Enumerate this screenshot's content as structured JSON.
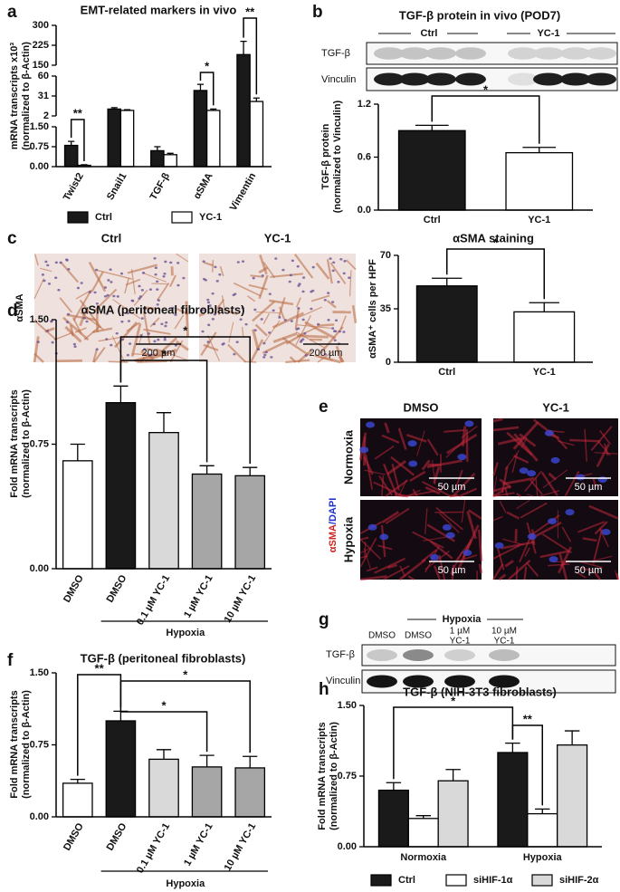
{
  "chart_data": [
    {
      "type": "bar",
      "title": "EMT-related markers in vivo",
      "ylabel": [
        "mRNA transcripts x10³",
        "(normalized to β-Actin)"
      ],
      "categories": [
        "Twist2",
        "Snail1",
        "TGF-β",
        "αSMA",
        "Vimentin"
      ],
      "series": [
        {
          "name": "Ctrl",
          "color": "#1a1a1a",
          "values": [
            0.8,
            12,
            0.6,
            39,
            190
          ],
          "errors": [
            0.15,
            2,
            0.15,
            9,
            50
          ]
        },
        {
          "name": "YC-1",
          "color": "#ffffff",
          "values": [
            0.05,
            10,
            0.45,
            10,
            23
          ],
          "errors": [
            0.02,
            1,
            0.05,
            2,
            5
          ]
        }
      ],
      "ylim": [
        0,
        300
      ],
      "ybreaks": [
        [
          1.5,
          2
        ],
        [
          60,
          150
        ]
      ],
      "yticks": [
        {
          "value": 0,
          "label": "0.00"
        },
        {
          "value": 0.75,
          "label": "0.75"
        },
        {
          "value": 1.5,
          "label": "1.50"
        },
        2,
        31,
        60,
        150,
        225,
        300
      ],
      "significance": [
        "**",
        "*",
        "**"
      ]
    },
    {
      "type": "bar",
      "ylabel": [
        "TGF-β protein",
        "(normalized to Vinculin)"
      ],
      "categories": [
        "Ctrl",
        "YC-1"
      ],
      "values": [
        0.9,
        0.65
      ],
      "errors": [
        0.06,
        0.06
      ],
      "colors": [
        "#1a1a1a",
        "#ffffff"
      ],
      "ylim": [
        0,
        1.2
      ],
      "yticks": [
        {
          "value": 0,
          "label": "0.0"
        },
        {
          "value": 0.6,
          "label": "0.6"
        },
        {
          "value": 1.2,
          "label": "1.2"
        }
      ],
      "significance": [
        "*"
      ]
    },
    {
      "type": "bar",
      "title": "αSMA staining",
      "ylabel": [
        "αSMA⁺ cells per HPF"
      ],
      "categories": [
        "Ctrl",
        "YC-1"
      ],
      "values": [
        50,
        33
      ],
      "errors": [
        5,
        6
      ],
      "colors": [
        "#1a1a1a",
        "#ffffff"
      ],
      "ylim": [
        0,
        70
      ],
      "yticks": [
        0,
        35,
        70
      ],
      "significance": [
        "*"
      ]
    },
    {
      "type": "bar",
      "title": "αSMA (peritoneal fibroblasts)",
      "ylabel": [
        "Fold mRNA transcripts",
        "(normalized to β-Actin)"
      ],
      "categories": [
        "DMSO",
        "DMSO",
        "0.1 µM YC-1",
        "1 µM YC-1",
        "10 µM YC-1"
      ],
      "values": [
        0.65,
        1.0,
        0.82,
        0.57,
        0.56
      ],
      "errors": [
        0.1,
        0.1,
        0.12,
        0.05,
        0.05
      ],
      "colors": [
        "#ffffff",
        "#1a1a1a",
        "#d9d9d9",
        "#a6a6a6",
        "#a6a6a6"
      ],
      "ylim": [
        0,
        1.5
      ],
      "yticks": [
        {
          "value": 0,
          "label": "0.00"
        },
        {
          "value": 0.75,
          "label": "0.75"
        },
        {
          "value": 1.5,
          "label": "1.50"
        }
      ],
      "group_label": "Hypoxia",
      "significance": [
        "*",
        "*"
      ]
    },
    {
      "type": "bar",
      "title": "TGF-β (peritoneal fibroblasts)",
      "ylabel": [
        "Fold mRNA transcripts",
        "(normalized to β-Actin)"
      ],
      "categories": [
        "DMSO",
        "DMSO",
        "0.1 µM YC-1",
        "1 µM YC-1",
        "10 µM YC-1"
      ],
      "values": [
        0.35,
        1.0,
        0.6,
        0.52,
        0.51
      ],
      "errors": [
        0.04,
        0.1,
        0.1,
        0.12,
        0.12
      ],
      "colors": [
        "#ffffff",
        "#1a1a1a",
        "#d9d9d9",
        "#a6a6a6",
        "#a6a6a6"
      ],
      "ylim": [
        0,
        1.5
      ],
      "yticks": [
        {
          "value": 0,
          "label": "0.00"
        },
        {
          "value": 0.75,
          "label": "0.75"
        },
        {
          "value": 1.5,
          "label": "1.50"
        }
      ],
      "group_label": "Hypoxia",
      "significance": [
        "**",
        "*",
        "*"
      ]
    },
    {
      "type": "bar",
      "title": "TGF-β (NIH-3T3 fibroblasts)",
      "ylabel": [
        "Fold mRNA transcripts",
        "(normalized to β-Actin)"
      ],
      "categories": [
        "Normoxia",
        "Hypoxia"
      ],
      "series": [
        {
          "name": "Ctrl",
          "color": "#1a1a1a",
          "values": [
            0.6,
            1.0
          ],
          "errors": [
            0.08,
            0.1
          ]
        },
        {
          "name": "siHIF-1α",
          "color": "#ffffff",
          "values": [
            0.3,
            0.35
          ],
          "errors": [
            0.03,
            0.05
          ]
        },
        {
          "name": "siHIF-2α",
          "color": "#d9d9d9",
          "values": [
            0.7,
            1.08
          ],
          "errors": [
            0.12,
            0.15
          ]
        }
      ],
      "ylim": [
        0,
        1.5
      ],
      "yticks": [
        {
          "value": 0,
          "label": "0.00"
        },
        {
          "value": 0.75,
          "label": "0.75"
        },
        {
          "value": 1.5,
          "label": "1.50"
        }
      ],
      "significance": [
        "*",
        "**"
      ]
    }
  ],
  "panel_labels": [
    "a",
    "b",
    "c",
    "d",
    "e",
    "f",
    "g",
    "h"
  ],
  "blot_b": {
    "title": "TGF-β protein in vivo (POD7)",
    "groups": [
      "Ctrl",
      "YC-1"
    ],
    "rows": [
      "TGF-β",
      "Vinculin"
    ]
  },
  "images_c": {
    "columns": [
      "Ctrl",
      "YC-1"
    ],
    "row": "αSMA",
    "scale_bar": "200 µm"
  },
  "images_e": {
    "columns": [
      "DMSO",
      "YC-1"
    ],
    "rows": [
      "Normoxia",
      "Hypoxia"
    ],
    "stain": [
      "αSMA",
      "/DAPI"
    ],
    "scale_bar": "50 µm"
  },
  "blot_g": {
    "group": "Hypoxia",
    "lanes": [
      [
        "DMSO"
      ],
      [
        "DMSO"
      ],
      [
        "1 µM",
        "YC-1"
      ],
      [
        "10 µM",
        "YC-1"
      ]
    ],
    "rows": [
      "TGF-β",
      "Vinculin"
    ]
  }
}
